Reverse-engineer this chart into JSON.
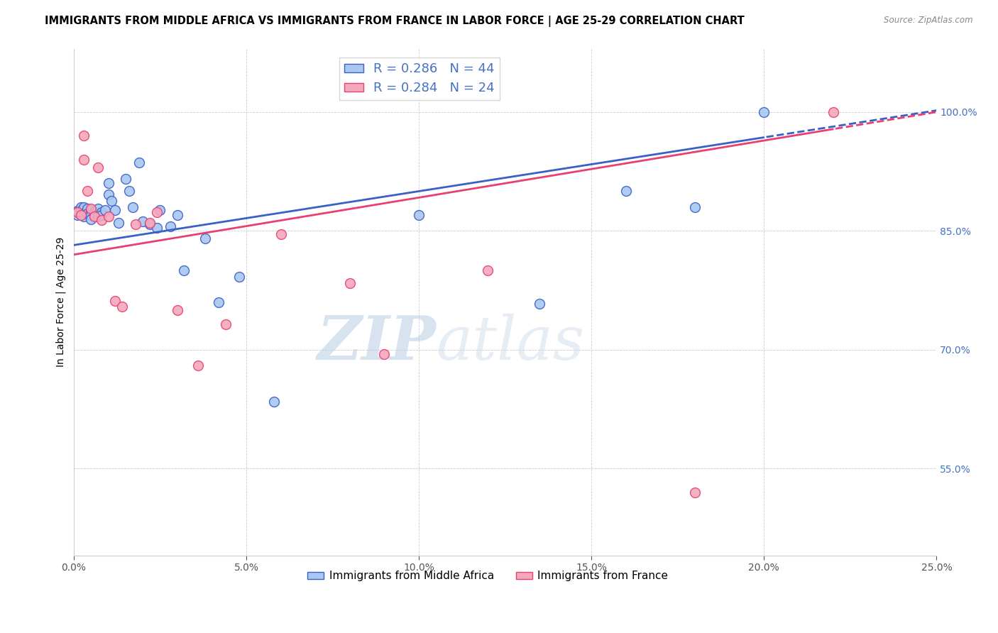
{
  "title": "IMMIGRANTS FROM MIDDLE AFRICA VS IMMIGRANTS FROM FRANCE IN LABOR FORCE | AGE 25-29 CORRELATION CHART",
  "source": "Source: ZipAtlas.com",
  "ylabel": "In Labor Force | Age 25-29",
  "legend_label_blue": "Immigrants from Middle Africa",
  "legend_label_pink": "Immigrants from France",
  "R_blue": 0.286,
  "N_blue": 44,
  "R_pink": 0.284,
  "N_pink": 24,
  "xlim": [
    0.0,
    0.25
  ],
  "ylim": [
    0.44,
    1.08
  ],
  "xticks": [
    0.0,
    0.05,
    0.1,
    0.15,
    0.2,
    0.25
  ],
  "yticks": [
    0.55,
    0.7,
    0.85,
    1.0
  ],
  "color_blue": "#A8C8F0",
  "color_pink": "#F4A8BC",
  "color_blue_line": "#3A5FC8",
  "color_pink_line": "#E84070",
  "color_blue_text": "#4472C4",
  "watermark_zip": "ZIP",
  "watermark_atlas": "atlas",
  "blue_line_intercept": 0.832,
  "blue_line_slope": 0.68,
  "pink_line_intercept": 0.82,
  "pink_line_slope": 0.72,
  "blue_x": [
    0.001,
    0.001,
    0.002,
    0.002,
    0.003,
    0.003,
    0.003,
    0.004,
    0.004,
    0.005,
    0.005,
    0.005,
    0.006,
    0.006,
    0.007,
    0.007,
    0.008,
    0.008,
    0.009,
    0.01,
    0.01,
    0.011,
    0.012,
    0.013,
    0.015,
    0.016,
    0.017,
    0.019,
    0.02,
    0.022,
    0.024,
    0.025,
    0.028,
    0.03,
    0.032,
    0.038,
    0.042,
    0.048,
    0.058,
    0.1,
    0.135,
    0.16,
    0.18,
    0.2
  ],
  "blue_y": [
    0.87,
    0.875,
    0.88,
    0.875,
    0.88,
    0.872,
    0.868,
    0.878,
    0.872,
    0.876,
    0.87,
    0.865,
    0.874,
    0.87,
    0.878,
    0.868,
    0.874,
    0.87,
    0.876,
    0.91,
    0.896,
    0.888,
    0.876,
    0.86,
    0.916,
    0.9,
    0.88,
    0.936,
    0.862,
    0.858,
    0.854,
    0.876,
    0.856,
    0.87,
    0.8,
    0.84,
    0.76,
    0.792,
    0.634,
    0.87,
    0.758,
    0.9,
    0.88,
    1.0
  ],
  "pink_x": [
    0.001,
    0.002,
    0.003,
    0.003,
    0.004,
    0.005,
    0.006,
    0.007,
    0.008,
    0.01,
    0.012,
    0.014,
    0.018,
    0.022,
    0.024,
    0.03,
    0.036,
    0.044,
    0.06,
    0.08,
    0.09,
    0.12,
    0.18,
    0.22
  ],
  "pink_y": [
    0.874,
    0.87,
    0.97,
    0.94,
    0.9,
    0.878,
    0.868,
    0.93,
    0.864,
    0.868,
    0.762,
    0.754,
    0.858,
    0.86,
    0.874,
    0.75,
    0.68,
    0.732,
    0.846,
    0.784,
    0.694,
    0.8,
    0.52,
    1.0
  ]
}
